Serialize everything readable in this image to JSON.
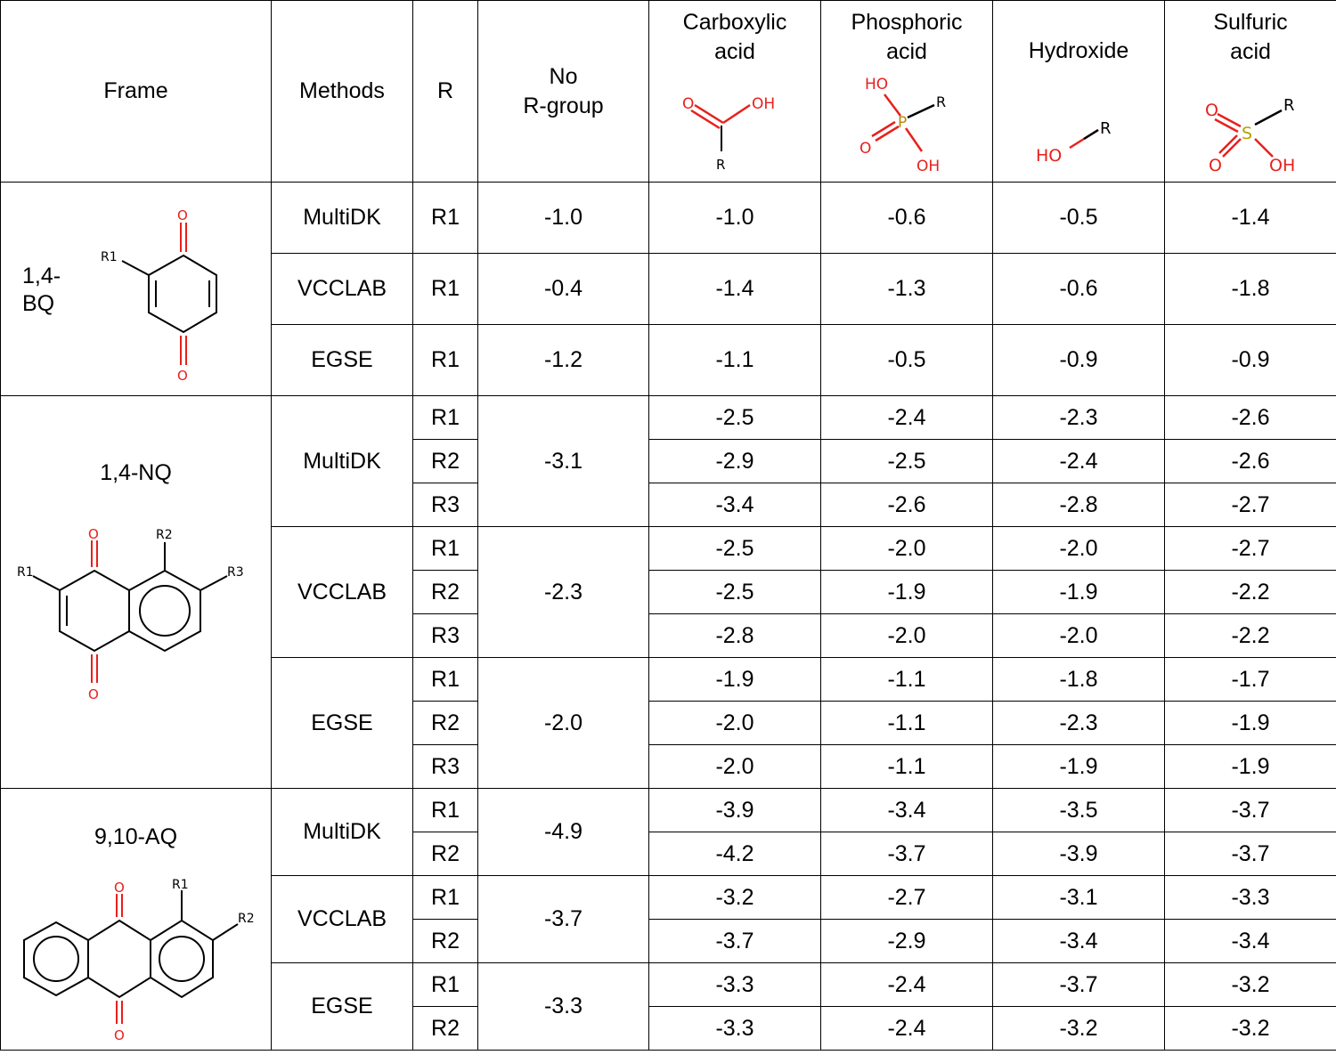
{
  "header": {
    "frame": "Frame",
    "methods": "Methods",
    "r": "R",
    "no_r_line1": "No",
    "no_r_line2": "R-group",
    "carboxylic_line1": "Carboxylic",
    "carboxylic_line2": "acid",
    "phosphoric_line1": "Phosphoric",
    "phosphoric_line2": "acid",
    "hydroxide": "Hydroxide",
    "sulfuric_line1": "Sulfuric",
    "sulfuric_line2": "acid"
  },
  "struct_labels": {
    "carboxylic": {
      "o": "O",
      "oh": "OH",
      "r": "R"
    },
    "phosphoric": {
      "ho": "HO",
      "p": "P",
      "r": "R",
      "o": "O",
      "oh": "OH"
    },
    "hydroxide": {
      "ho": "HO",
      "r": "R"
    },
    "sulfuric": {
      "o1": "O",
      "s": "S",
      "r": "R",
      "o2": "O",
      "oh": "OH"
    },
    "bq": {
      "o": "O",
      "r1": "R1"
    },
    "nq": {
      "o": "O",
      "r1": "R1",
      "r2": "R2",
      "r3": "R3"
    },
    "aq": {
      "o": "O",
      "r1": "R1",
      "r2": "R2"
    }
  },
  "frames": {
    "bq_line1": "1,4-",
    "bq_line2": "BQ",
    "nq": "1,4-NQ",
    "aq": "9,10-AQ"
  },
  "methods": {
    "multidk": "MultiDK",
    "vcclab": "VCCLAB",
    "egse": "EGSE"
  },
  "rows": [
    {
      "method": "MultiDK",
      "r": "R1",
      "no_r": "-1.0",
      "carboxylic": "-1.0",
      "phosphoric": "-0.6",
      "hydroxide": "-0.5",
      "sulfuric": "-1.4"
    },
    {
      "method": "VCCLAB",
      "r": "R1",
      "no_r": "-0.4",
      "carboxylic": "-1.4",
      "phosphoric": "-1.3",
      "hydroxide": "-0.6",
      "sulfuric": "-1.8"
    },
    {
      "method": "EGSE",
      "r": "R1",
      "no_r": "-1.2",
      "carboxylic": "-1.1",
      "phosphoric": "-0.5",
      "hydroxide": "-0.9",
      "sulfuric": "-0.9"
    },
    {
      "method": "MultiDK",
      "r": "R1",
      "no_r": "-3.1",
      "carboxylic": "-2.5",
      "phosphoric": "-2.4",
      "hydroxide": "-2.3",
      "sulfuric": "-2.6"
    },
    {
      "r": "R2",
      "carboxylic": "-2.9",
      "phosphoric": "-2.5",
      "hydroxide": "-2.4",
      "sulfuric": "-2.6"
    },
    {
      "r": "R3",
      "carboxylic": "-3.4",
      "phosphoric": "-2.6",
      "hydroxide": "-2.8",
      "sulfuric": "-2.7"
    },
    {
      "method": "VCCLAB",
      "r": "R1",
      "no_r": "-2.3",
      "carboxylic": "-2.5",
      "phosphoric": "-2.0",
      "hydroxide": "-2.0",
      "sulfuric": "-2.7"
    },
    {
      "r": "R2",
      "carboxylic": "-2.5",
      "phosphoric": "-1.9",
      "hydroxide": "-1.9",
      "sulfuric": "-2.2"
    },
    {
      "r": "R3",
      "carboxylic": "-2.8",
      "phosphoric": "-2.0",
      "hydroxide": "-2.0",
      "sulfuric": "-2.2"
    },
    {
      "method": "EGSE",
      "r": "R1",
      "no_r": "-2.0",
      "carboxylic": "-1.9",
      "phosphoric": "-1.1",
      "hydroxide": "-1.8",
      "sulfuric": "-1.7"
    },
    {
      "r": "R2",
      "carboxylic": "-2.0",
      "phosphoric": "-1.1",
      "hydroxide": "-2.3",
      "sulfuric": "-1.9"
    },
    {
      "r": "R3",
      "carboxylic": "-2.0",
      "phosphoric": "-1.1",
      "hydroxide": "-1.9",
      "sulfuric": "-1.9"
    },
    {
      "method": "MultiDK",
      "r": "R1",
      "no_r": "-4.9",
      "carboxylic": "-3.9",
      "phosphoric": "-3.4",
      "hydroxide": "-3.5",
      "sulfuric": "-3.7"
    },
    {
      "r": "R2",
      "carboxylic": "-4.2",
      "phosphoric": "-3.7",
      "hydroxide": "-3.9",
      "sulfuric": "-3.7"
    },
    {
      "method": "VCCLAB",
      "r": "R1",
      "no_r": "-3.7",
      "carboxylic": "-3.2",
      "phosphoric": "-2.7",
      "hydroxide": "-3.1",
      "sulfuric": "-3.3"
    },
    {
      "r": "R2",
      "carboxylic": "-3.7",
      "phosphoric": "-2.9",
      "hydroxide": "-3.4",
      "sulfuric": "-3.4"
    },
    {
      "method": "EGSE",
      "r": "R1",
      "no_r": "-3.3",
      "carboxylic": "-3.3",
      "phosphoric": "-2.4",
      "hydroxide": "-3.7",
      "sulfuric": "-3.2"
    },
    {
      "r": "R2",
      "carboxylic": "-3.3",
      "phosphoric": "-2.4",
      "hydroxide": "-3.2",
      "sulfuric": "-3.2"
    }
  ],
  "colors": {
    "oxygen": "#e8201c",
    "phosphorus": "#b8860b",
    "sulfur": "#b8a000",
    "bond": "#000000"
  }
}
